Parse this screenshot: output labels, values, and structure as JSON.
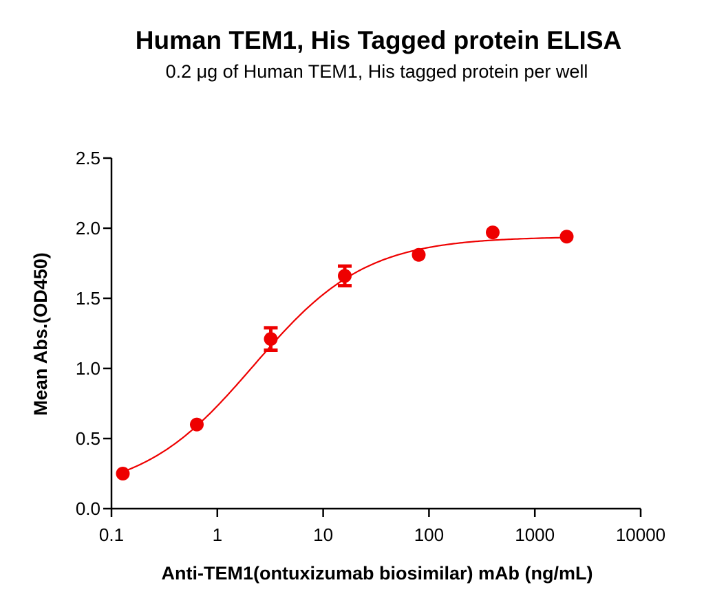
{
  "chart_data": {
    "type": "scatter",
    "title": "Human TEM1, His Tagged protein ELISA",
    "subtitle": "0.2 μg of Human TEM1, His tagged protein per well",
    "xlabel": "Anti-TEM1(ontuxizumab biosimilar) mAb (ng/mL)",
    "ylabel": "Mean Abs.(OD450)",
    "xscale": "log",
    "xlim": [
      0.1,
      10000
    ],
    "ylim": [
      0.0,
      2.5
    ],
    "xticks": [
      "0.1",
      "1",
      "10",
      "100",
      "1000",
      "10000"
    ],
    "yticks": [
      "0.0",
      "0.5",
      "1.0",
      "1.5",
      "2.0",
      "2.5"
    ],
    "grid": false,
    "legend": null,
    "color": "#ee0000",
    "series": [
      {
        "name": "Human TEM1, His tagged protein",
        "x": [
          0.128,
          0.64,
          3.2,
          16,
          80,
          400,
          2000
        ],
        "y": [
          0.25,
          0.6,
          1.21,
          1.66,
          1.81,
          1.97,
          1.94
        ],
        "error": [
          0.0,
          0.0,
          0.08,
          0.07,
          0.0,
          0.0,
          0.0
        ],
        "fit": "4PL sigmoidal curve"
      }
    ]
  }
}
